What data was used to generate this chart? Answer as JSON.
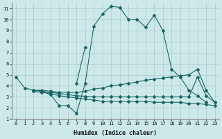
{
  "xlabel": "Humidex (Indice chaleur)",
  "xlim": [
    -0.5,
    23.5
  ],
  "ylim": [
    1,
    11.5
  ],
  "xticks": [
    0,
    1,
    2,
    3,
    4,
    5,
    6,
    7,
    8,
    9,
    10,
    11,
    12,
    13,
    14,
    15,
    16,
    17,
    18,
    19,
    20,
    21,
    22,
    23
  ],
  "yticks": [
    1,
    2,
    3,
    4,
    5,
    6,
    7,
    8,
    9,
    10,
    11
  ],
  "bg_color": "#cce8e8",
  "grid_color": "#aacccc",
  "line_color": "#1a6666",
  "series": [
    {
      "x": [
        0,
        1,
        2,
        3,
        4,
        5,
        6,
        7,
        8,
        9,
        10,
        11,
        12,
        13,
        14,
        15,
        16,
        17,
        18,
        19,
        20,
        21,
        22
      ],
      "y": [
        4.8,
        3.8,
        3.6,
        3.5,
        3.2,
        2.2,
        2.2,
        1.5,
        4.2,
        9.4,
        10.5,
        11.2,
        11.1,
        10.0,
        10.0,
        9.3,
        10.4,
        9.0,
        5.5,
        4.8,
        3.6,
        3.1,
        2.5
      ]
    },
    {
      "x": [
        7,
        8
      ],
      "y": [
        4.2,
        7.5
      ]
    },
    {
      "x": [
        2,
        3,
        4,
        5,
        6,
        7,
        8,
        9,
        10,
        11,
        12,
        13,
        14,
        15,
        16,
        17,
        18,
        19,
        20,
        21,
        22,
        23
      ],
      "y": [
        3.6,
        3.6,
        3.5,
        3.4,
        3.4,
        3.4,
        3.5,
        3.7,
        3.8,
        4.0,
        4.1,
        4.2,
        4.35,
        4.5,
        4.6,
        4.7,
        4.8,
        4.9,
        5.0,
        5.5,
        3.6,
        2.5
      ]
    },
    {
      "x": [
        2,
        3,
        4,
        5,
        6,
        7,
        8,
        9,
        10,
        11,
        12,
        13,
        14,
        15,
        16,
        17,
        18,
        19,
        20,
        21,
        22,
        23
      ],
      "y": [
        3.6,
        3.5,
        3.4,
        3.3,
        3.2,
        3.1,
        3.05,
        3.0,
        3.0,
        3.0,
        3.0,
        3.0,
        3.0,
        3.0,
        3.0,
        3.0,
        3.0,
        3.0,
        3.0,
        4.8,
        3.1,
        2.5
      ]
    },
    {
      "x": [
        2,
        3,
        4,
        5,
        6,
        7,
        8,
        9,
        10,
        11,
        12,
        13,
        14,
        15,
        16,
        17,
        18,
        19,
        20,
        21,
        22,
        23
      ],
      "y": [
        3.5,
        3.4,
        3.3,
        3.1,
        3.0,
        2.9,
        2.8,
        2.7,
        2.6,
        2.6,
        2.6,
        2.6,
        2.6,
        2.6,
        2.5,
        2.5,
        2.5,
        2.5,
        2.4,
        2.4,
        2.3,
        2.2
      ]
    }
  ],
  "line_width": 0.8,
  "marker": "D",
  "marker_size": 2.0,
  "tick_fontsize": 5.0,
  "xlabel_fontsize": 6.0
}
